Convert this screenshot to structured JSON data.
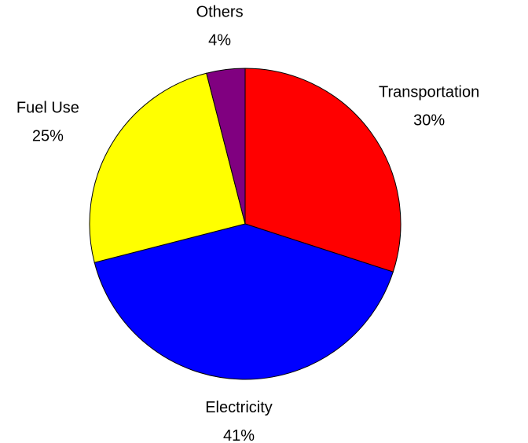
{
  "chart_data": {
    "type": "pie",
    "categories": [
      "Transportation",
      "Electricity",
      "Fuel Use",
      "Others"
    ],
    "values": [
      30,
      41,
      25,
      4
    ],
    "value_labels": [
      "30%",
      "41%",
      "25%",
      "4%"
    ],
    "colors": [
      "#ff0000",
      "#0000ff",
      "#ffff00",
      "#800080"
    ]
  }
}
